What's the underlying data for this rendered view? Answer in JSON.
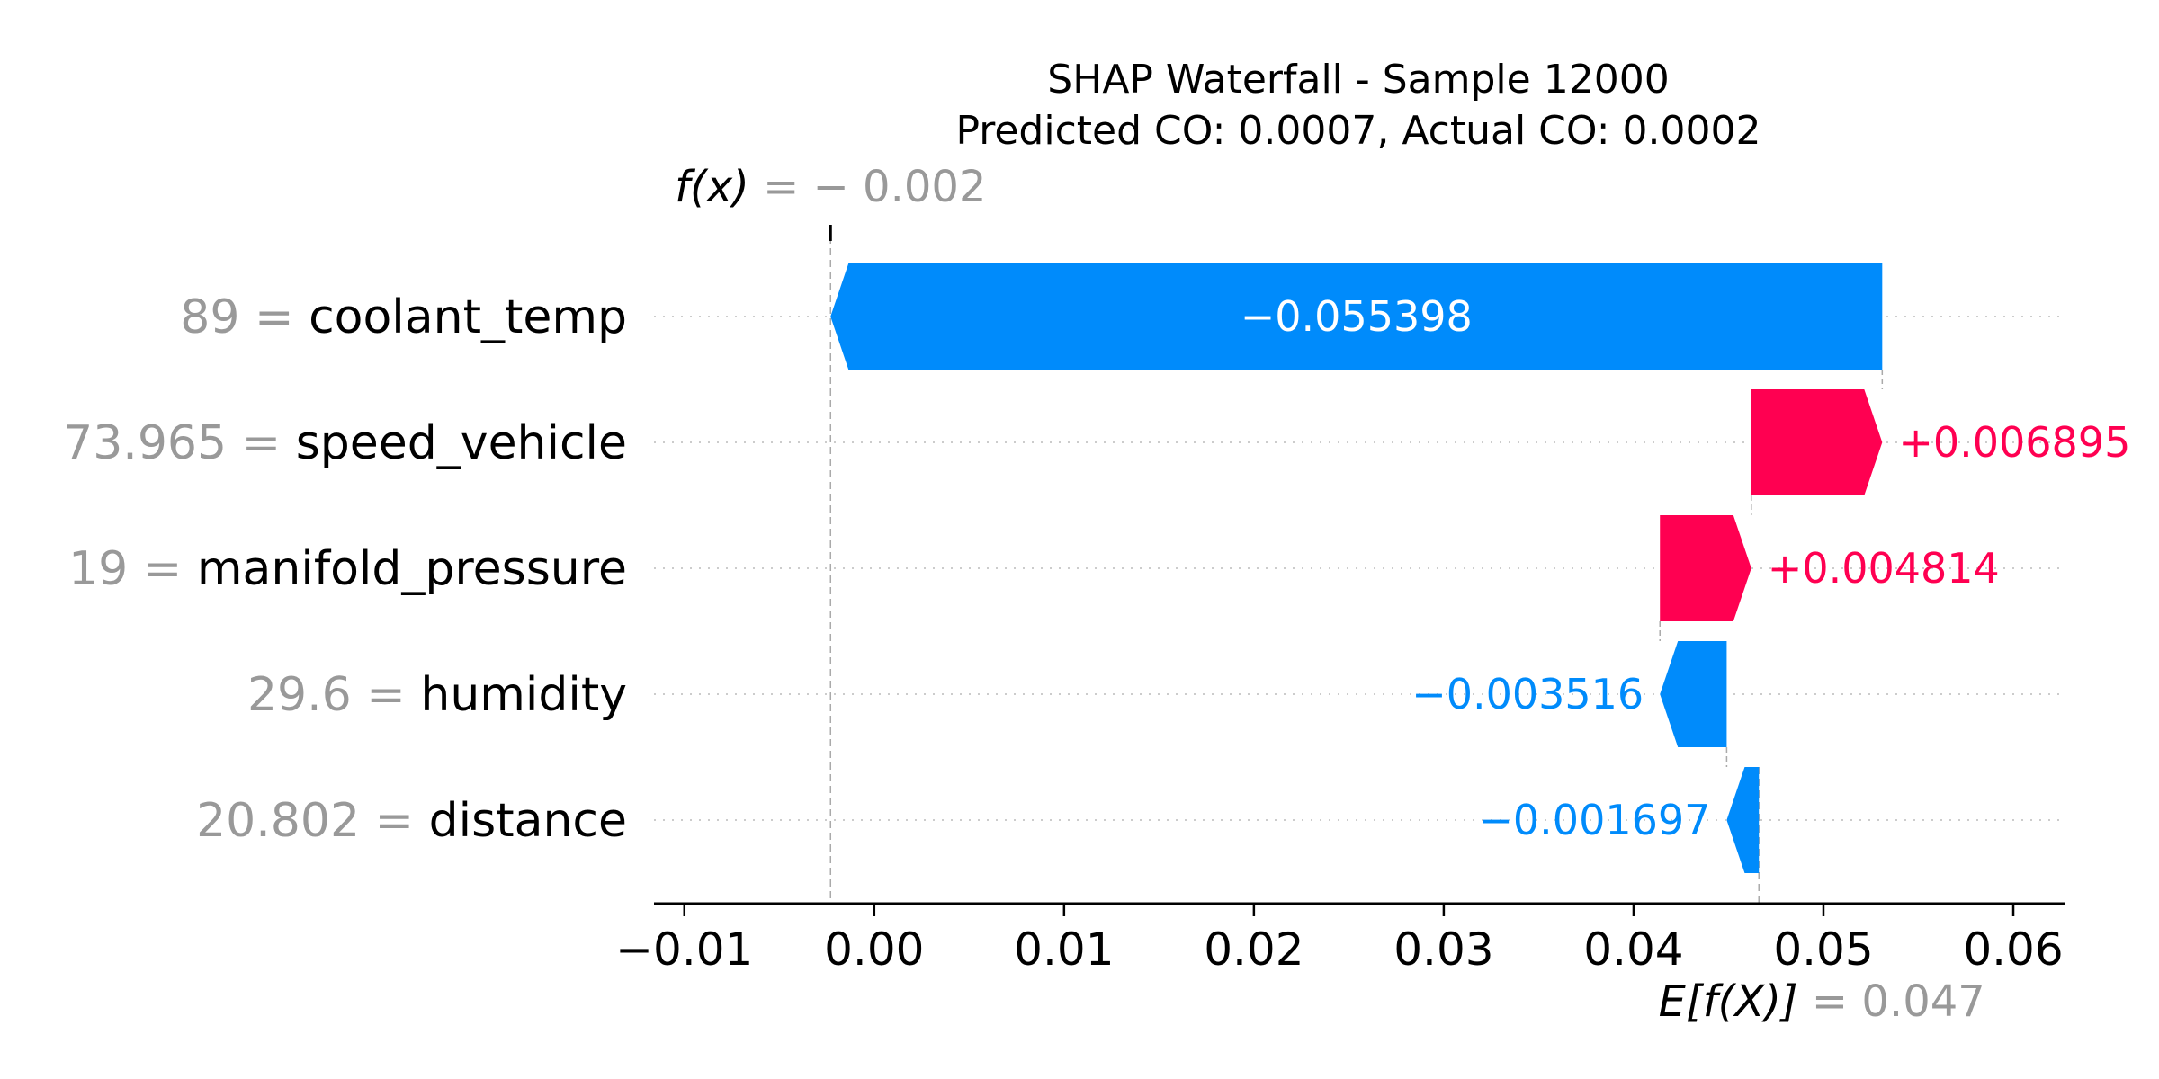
{
  "chart_data": {
    "type": "bar",
    "variant": "shap-waterfall",
    "title": "SHAP Waterfall - Sample 12000",
    "subtitle": "Predicted CO: 0.0007, Actual CO: 0.0002",
    "features": [
      {
        "value": "89",
        "name": "coolant_temp",
        "shap": -0.055398,
        "label": "−0.055398"
      },
      {
        "value": "73.965",
        "name": "speed_vehicle",
        "shap": 0.006895,
        "label": "+0.006895"
      },
      {
        "value": "19",
        "name": "manifold_pressure",
        "shap": 0.004814,
        "label": "+0.004814"
      },
      {
        "value": "29.6",
        "name": "humidity",
        "shap": -0.003516,
        "label": "−0.003516"
      },
      {
        "value": "20.802",
        "name": "distance",
        "shap": -0.001697,
        "label": "−0.001697"
      }
    ],
    "base_value": 0.0466,
    "output_value": -0.0023,
    "fx_label": "f(x)",
    "fx_value_text": "− 0.002",
    "efx_label": "E[f(X)]",
    "efx_value_text": "= 0.047",
    "x_ticks": [
      -0.01,
      0.0,
      0.01,
      0.02,
      0.03,
      0.04,
      0.05,
      0.06
    ],
    "x_tick_labels": [
      "−0.01",
      "0.00",
      "0.01",
      "0.02",
      "0.03",
      "0.04",
      "0.05",
      "0.06"
    ],
    "xlim": [
      -0.0116,
      0.0627
    ],
    "xlabel": "",
    "ylabel": "",
    "grid": false,
    "legend": "none"
  },
  "colors": {
    "positive": "#ff0051",
    "negative": "#008bfb",
    "axis": "#000000",
    "muted": "#999999",
    "dotted": "#cccccc"
  }
}
